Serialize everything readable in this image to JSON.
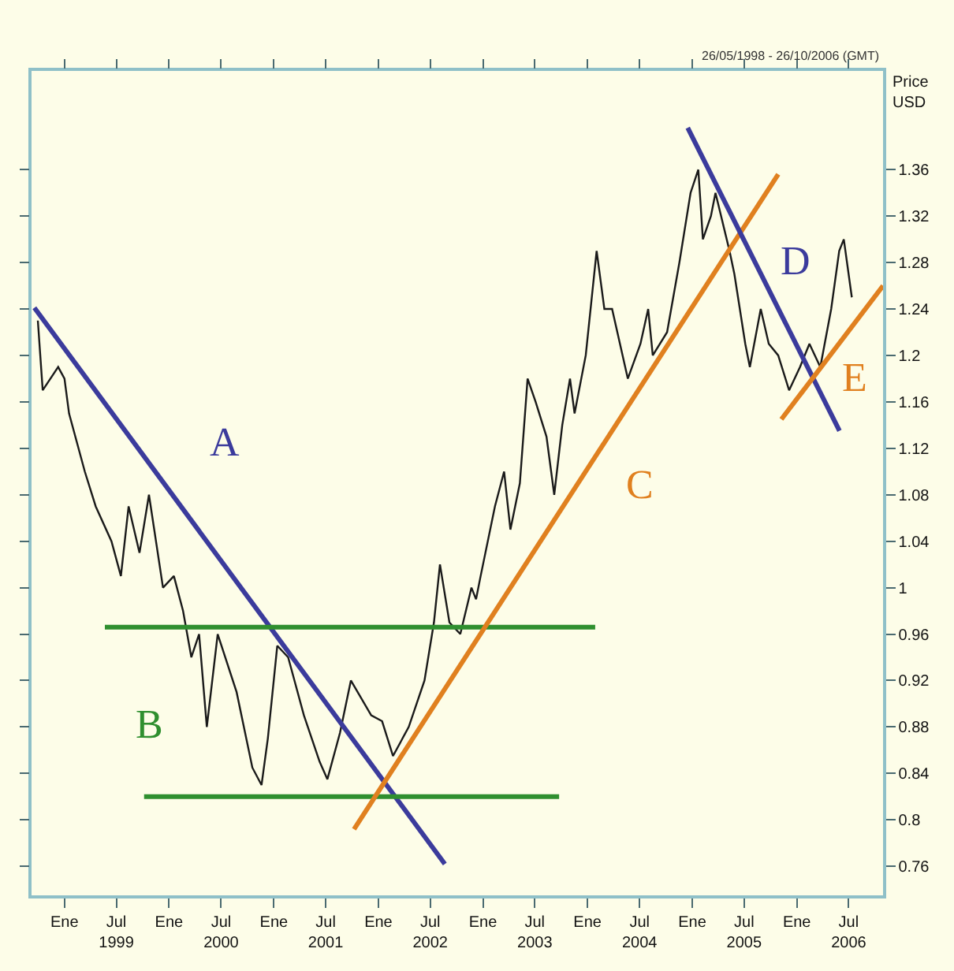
{
  "chart_data": {
    "type": "line",
    "subtitle": "26/05/1998 - 26/10/2006 (GMT)",
    "ylabel": "Price\nUSD",
    "xlim": [
      "1998-09-08",
      "2006-10-29"
    ],
    "ylim": [
      0.735,
      1.445
    ],
    "xticks": [
      {
        "value": "1999-01-01",
        "label": "Ene"
      },
      {
        "value": "1999-07-01",
        "label": "Jul\n1999"
      },
      {
        "value": "2000-01-01",
        "label": "Ene"
      },
      {
        "value": "2000-07-01",
        "label": "Jul\n2000"
      },
      {
        "value": "2001-01-01",
        "label": "Ene"
      },
      {
        "value": "2001-07-01",
        "label": "Jul\n2001"
      },
      {
        "value": "2002-01-01",
        "label": "Ene"
      },
      {
        "value": "2002-07-01",
        "label": "Jul\n2002"
      },
      {
        "value": "2003-01-01",
        "label": "Ene"
      },
      {
        "value": "2003-07-01",
        "label": "Jul\n2003"
      },
      {
        "value": "2004-01-01",
        "label": "Ene"
      },
      {
        "value": "2004-07-01",
        "label": "Jul\n2004"
      },
      {
        "value": "2005-01-01",
        "label": "Ene"
      },
      {
        "value": "2005-07-01",
        "label": "Jul\n2005"
      },
      {
        "value": "2006-01-01",
        "label": "Ene"
      },
      {
        "value": "2006-07-01",
        "label": "Jul\n2006"
      }
    ],
    "yticks": [
      0.76,
      0.8,
      0.84,
      0.88,
      0.92,
      0.96,
      1,
      1.04,
      1.08,
      1.12,
      1.16,
      1.2,
      1.24,
      1.28,
      1.32,
      1.36
    ],
    "grid": false,
    "legend": false,
    "marker": "none",
    "line_style": "solid",
    "series": [
      {
        "color": "#1a1a1a",
        "x": [
          "1998-09-30",
          "1998-10-17",
          "1998-12-10",
          "1999-01-01",
          "1999-01-17",
          "1999-03-13",
          "1999-04-20",
          "1999-06-14",
          "1999-07-17",
          "1999-08-13",
          "1999-09-20",
          "1999-10-23",
          "1999-12-11",
          "2000-01-18",
          "2000-02-19",
          "2000-03-19",
          "2000-04-15",
          "2000-05-12",
          "2000-06-19",
          "2000-08-24",
          "2000-10-18",
          "2000-11-19",
          "2000-12-11",
          "2001-01-13",
          "2001-02-20",
          "2001-04-16",
          "2001-06-10",
          "2001-07-07",
          "2001-08-20",
          "2001-09-27",
          "2001-12-07",
          "2002-01-14",
          "2002-02-21",
          "2002-04-17",
          "2002-06-11",
          "2002-07-14",
          "2002-08-04",
          "2002-09-06",
          "2002-10-14",
          "2002-11-22",
          "2002-12-08",
          "2002-12-24",
          "2003-02-12",
          "2003-03-16",
          "2003-04-07",
          "2003-05-10",
          "2003-06-06",
          "2003-07-04",
          "2003-08-11",
          "2003-09-07",
          "2003-10-05",
          "2003-11-01",
          "2003-11-17",
          "2003-12-26",
          "2004-02-02",
          "2004-02-29",
          "2004-03-27",
          "2004-05-21",
          "2004-07-04",
          "2004-07-31",
          "2004-08-16",
          "2004-10-05",
          "2004-11-17",
          "2004-12-26",
          "2005-01-22",
          "2005-02-07",
          "2005-03-07",
          "2005-03-23",
          "2005-05-11",
          "2005-05-28",
          "2005-07-05",
          "2005-07-21",
          "2005-08-28",
          "2005-09-25",
          "2005-10-28",
          "2005-12-05",
          "2006-01-12",
          "2006-02-14",
          "2006-03-24",
          "2006-05-01",
          "2006-05-29",
          "2006-06-14",
          "2006-07-12"
        ],
        "values": [
          1.23,
          1.17,
          1.19,
          1.18,
          1.15,
          1.1,
          1.07,
          1.04,
          1.01,
          1.07,
          1.03,
          1.08,
          1.0,
          1.01,
          0.98,
          0.94,
          0.96,
          0.88,
          0.96,
          0.91,
          0.845,
          0.83,
          0.87,
          0.95,
          0.94,
          0.89,
          0.85,
          0.835,
          0.875,
          0.92,
          0.89,
          0.885,
          0.855,
          0.88,
          0.92,
          0.97,
          1.02,
          0.97,
          0.96,
          1.0,
          0.99,
          1.01,
          1.07,
          1.1,
          1.05,
          1.09,
          1.18,
          1.16,
          1.13,
          1.08,
          1.14,
          1.18,
          1.15,
          1.2,
          1.29,
          1.24,
          1.24,
          1.18,
          1.21,
          1.24,
          1.2,
          1.22,
          1.28,
          1.34,
          1.36,
          1.3,
          1.32,
          1.34,
          1.29,
          1.27,
          1.21,
          1.19,
          1.24,
          1.21,
          1.2,
          1.17,
          1.19,
          1.21,
          1.19,
          1.24,
          1.29,
          1.3,
          1.25
        ]
      },
      {
        "name": "A",
        "color": "#3b3b9c",
        "x": [
          "1998-09-18",
          "2002-08-21"
        ],
        "values": [
          1.241,
          0.762
        ]
      },
      {
        "name": "B",
        "color": "#2f8f2f",
        "x": [
          "1999-05-22",
          "2004-01-28"
        ],
        "values": [
          0.966,
          0.966
        ]
      },
      {
        "color": "#2f8f2f",
        "x": [
          "1999-10-06",
          "2003-09-24"
        ],
        "values": [
          0.82,
          0.82
        ]
      },
      {
        "name": "C",
        "color": "#e0801f",
        "x": [
          "2001-10-08",
          "2005-10-28"
        ],
        "values": [
          0.792,
          1.356
        ]
      },
      {
        "name": "D",
        "color": "#3b3b9c",
        "x": [
          "2004-12-16",
          "2006-05-30"
        ],
        "values": [
          1.396,
          1.135
        ]
      },
      {
        "name": "E",
        "color": "#e0801f",
        "x": [
          "2005-11-08",
          "2006-10-29"
        ],
        "values": [
          1.145,
          1.26
        ]
      }
    ]
  }
}
